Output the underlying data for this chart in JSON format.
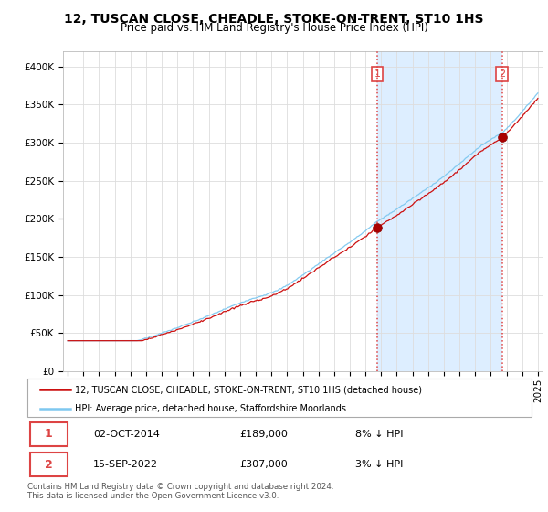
{
  "title": "12, TUSCAN CLOSE, CHEADLE, STOKE-ON-TRENT, ST10 1HS",
  "subtitle": "Price paid vs. HM Land Registry's House Price Index (HPI)",
  "yticks": [
    0,
    50000,
    100000,
    150000,
    200000,
    250000,
    300000,
    350000,
    400000
  ],
  "ytick_labels": [
    "£0",
    "£50K",
    "£100K",
    "£150K",
    "£200K",
    "£250K",
    "£300K",
    "£350K",
    "£400K"
  ],
  "ylim": [
    0,
    420000
  ],
  "xlim": [
    1994.7,
    2025.3
  ],
  "sale1_date": 2014.75,
  "sale1_price": 189000,
  "sale2_date": 2022.71,
  "sale2_price": 307000,
  "vline_color": "#dd4444",
  "hpi_color": "#7ec8f0",
  "price_color": "#cc1111",
  "marker_color": "#aa0000",
  "grid_color": "#dddddd",
  "bg_color": "#ffffff",
  "shade_color": "#ddeeff",
  "hatch_color": "#cccccc",
  "legend_house": "12, TUSCAN CLOSE, CHEADLE, STOKE-ON-TRENT, ST10 1HS (detached house)",
  "legend_hpi": "HPI: Average price, detached house, Staffordshire Moorlands",
  "table_row1": [
    "1",
    "02-OCT-2014",
    "£189,000",
    "8% ↓ HPI"
  ],
  "table_row2": [
    "2",
    "15-SEP-2022",
    "£307,000",
    "3% ↓ HPI"
  ],
  "footer": "Contains HM Land Registry data © Crown copyright and database right 2024.\nThis data is licensed under the Open Government Licence v3.0.",
  "title_fontsize": 10,
  "subtitle_fontsize": 8.5,
  "tick_fontsize": 7.5,
  "xtick_years": [
    1995,
    1996,
    1997,
    1998,
    1999,
    2000,
    2001,
    2002,
    2003,
    2004,
    2005,
    2006,
    2007,
    2008,
    2009,
    2010,
    2011,
    2012,
    2013,
    2014,
    2015,
    2016,
    2017,
    2018,
    2019,
    2020,
    2021,
    2022,
    2023,
    2024,
    2025
  ]
}
